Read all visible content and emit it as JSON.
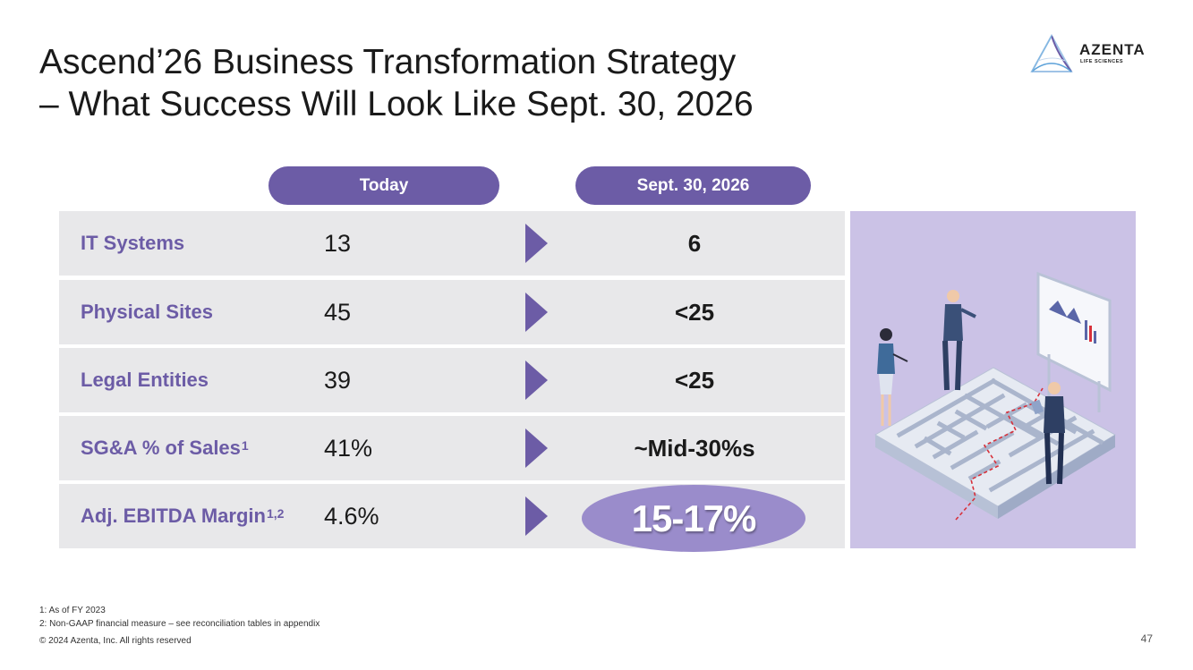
{
  "title": {
    "line1": "Ascend’26 Business Transformation Strategy",
    "line2": "– What Success Will Look Like Sept. 30, 2026"
  },
  "logo": {
    "name": "AZENTA",
    "tagline": "LIFE SCIENCES"
  },
  "columns": {
    "today": "Today",
    "target": "Sept. 30, 2026"
  },
  "rows": [
    {
      "label": "IT Systems",
      "sup": "",
      "today": "13",
      "target": "6"
    },
    {
      "label": "Physical Sites",
      "sup": "",
      "today": "45",
      "target": "<25"
    },
    {
      "label": "Legal Entities",
      "sup": "",
      "today": "39",
      "target": "<25"
    },
    {
      "label": "SG&A % of Sales",
      "sup": "1",
      "today": "41%",
      "target": "~Mid-30%s"
    },
    {
      "label": "Adj. EBITDA Margin",
      "sup": "1,2",
      "today": "4.6%",
      "target": "15-17%"
    }
  ],
  "footnotes": {
    "note1": "1: As of FY 2023",
    "note2": "2: Non-GAAP financial measure – see reconciliation tables in appendix",
    "copyright": "© 2024 Azenta, Inc.  All rights reserved"
  },
  "page_number": "47",
  "colors": {
    "accent": "#6c5ca6",
    "highlight": "#9a8ccb",
    "row_bg": "#e8e8ea",
    "illustration_bg": "#cbc2e6"
  }
}
